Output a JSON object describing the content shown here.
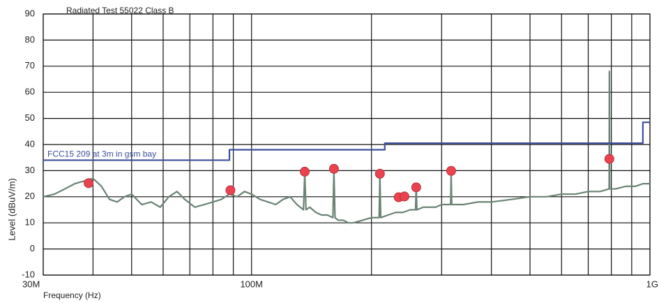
{
  "chart_data": {
    "type": "line",
    "title": "Radiated Test 55022 Class B",
    "xlabel": "Frequency (Hz)",
    "ylabel": "Level (dBuV/m)",
    "xscale": "log",
    "xlim": [
      30000000.0,
      1000000000.0
    ],
    "xticks": [
      {
        "value": 30000000.0,
        "label": "30M"
      },
      {
        "value": 100000000.0,
        "label": "100M"
      },
      {
        "value": 1000000000.0,
        "label": "1G"
      }
    ],
    "xminor": [
      40000000.0,
      50000000.0,
      60000000.0,
      70000000.0,
      80000000.0,
      90000000.0,
      200000000.0,
      300000000.0,
      400000000.0,
      500000000.0,
      600000000.0,
      700000000.0,
      800000000.0,
      900000000.0
    ],
    "ylim": [
      -10,
      90
    ],
    "yticks": [
      -10,
      0,
      10,
      20,
      30,
      40,
      50,
      60,
      70,
      80,
      90
    ],
    "grid": true,
    "series": [
      {
        "color": "#6b8374",
        "style": "line",
        "x": [
          30000000.0,
          32000000.0,
          34000000.0,
          36000000.0,
          38000000.0,
          40000000.0,
          42000000.0,
          44000000.0,
          46000000.0,
          48000000.0,
          50000000.0,
          53000000.0,
          56000000.0,
          59000000.0,
          62000000.0,
          65000000.0,
          68000000.0,
          72000000.0,
          76000000.0,
          80000000.0,
          84000000.0,
          88000000.0,
          92000000.0,
          96000000.0,
          100000000.0,
          105000000.0,
          110000000.0,
          115000000.0,
          120000000.0,
          125000000.0,
          130000000.0,
          135000000.0,
          136000000.0,
          137000000.0,
          140000000.0,
          145000000.0,
          150000000.0,
          155000000.0,
          160000000.0,
          161000000.0,
          162000000.0,
          165000000.0,
          170000000.0,
          175000000.0,
          180000000.0,
          190000000.0,
          200000000.0,
          209000000.0,
          210000000.0,
          211000000.0,
          220000000.0,
          230000000.0,
          240000000.0,
          250000000.0,
          258000000.0,
          259000000.0,
          260000000.0,
          270000000.0,
          280000000.0,
          290000000.0,
          300000000.0,
          316000000.0,
          317000000.0,
          318000000.0,
          340000000.0,
          370000000.0,
          400000000.0,
          450000000.0,
          500000000.0,
          550000000.0,
          600000000.0,
          650000000.0,
          700000000.0,
          750000000.0,
          790000000.0,
          791000000.0,
          792000000.0,
          820000000.0,
          870000000.0,
          920000000.0,
          960000000.0,
          1000000000.0
        ],
        "values": [
          20,
          21,
          23,
          25,
          26,
          27,
          24,
          19,
          18,
          20,
          21,
          17,
          18,
          16,
          20,
          22,
          19,
          16,
          17,
          18,
          19,
          21,
          20,
          22,
          21,
          19,
          18,
          17,
          19,
          20,
          17,
          15,
          29,
          15,
          16,
          14,
          13,
          13,
          12,
          30,
          12,
          11,
          11,
          10,
          10,
          11,
          12,
          12,
          28,
          12,
          13,
          14,
          14,
          15,
          15,
          24,
          15,
          16,
          16,
          16,
          17,
          17,
          29,
          17,
          17,
          18,
          18,
          19,
          20,
          20,
          21,
          21,
          22,
          22,
          23,
          68,
          23,
          23,
          24,
          24,
          25,
          25
        ]
      },
      {
        "name": "FCC15 209  at 3m in gsm bay",
        "color": "#3d4f9a",
        "style": "line",
        "x": [
          30000000.0,
          88000000.0,
          88000000.0,
          216000000.0,
          216000000.0,
          960000000.0,
          960000000.0,
          1000000000.0
        ],
        "values": [
          34,
          34,
          38,
          38,
          40.5,
          40.5,
          48.5,
          48.5
        ]
      },
      {
        "color": "#e8434f",
        "style": "dots",
        "x": [
          39000000.0,
          88500000.0,
          136000000.0,
          161000000.0,
          210000000.0,
          234000000.0,
          242000000.0,
          259000000.0,
          317000000.0,
          791000000.0
        ],
        "values": [
          25.2,
          22.5,
          29.6,
          30.7,
          28.8,
          19.8,
          20.1,
          23.6,
          29.9,
          34.5
        ]
      }
    ]
  }
}
